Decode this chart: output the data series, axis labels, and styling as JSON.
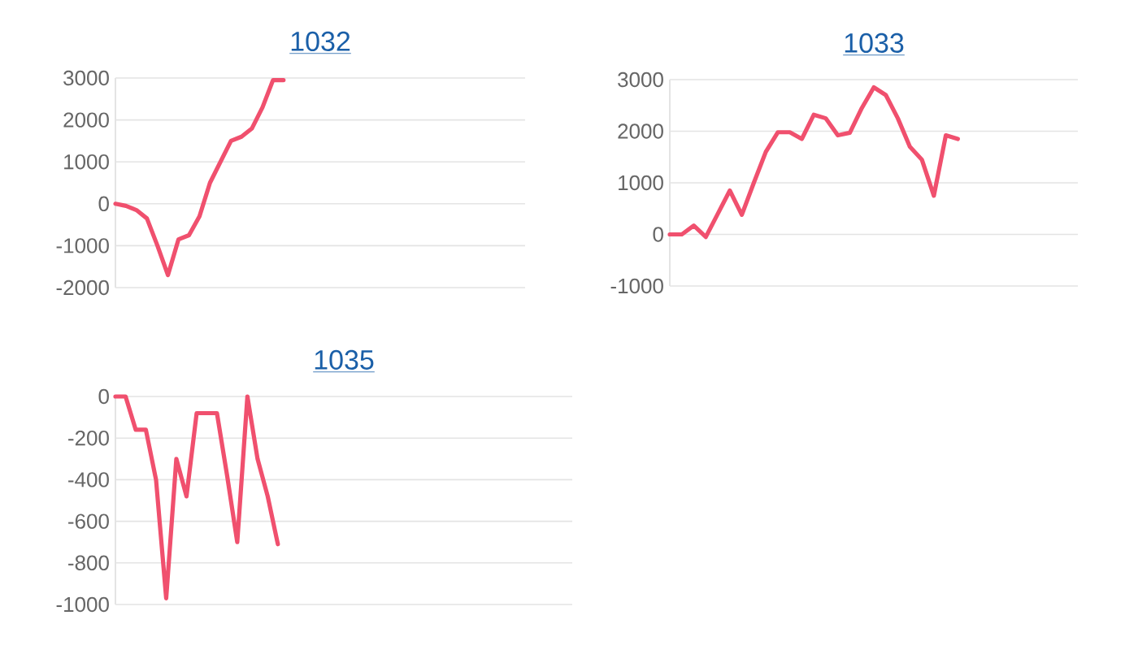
{
  "chart_data": [
    {
      "type": "line",
      "title": "1032",
      "color": "#f0506e",
      "grid": "y",
      "marker": "none",
      "tick_labels": "y",
      "categories": [
        null,
        null,
        null,
        null,
        null,
        null,
        null,
        null,
        null,
        null,
        null,
        null,
        null,
        null,
        null,
        null,
        null,
        null,
        null,
        null,
        null,
        null,
        null,
        null,
        null,
        null,
        null,
        null,
        null,
        null,
        null,
        null,
        null,
        null,
        null,
        null,
        null,
        null,
        null,
        null
      ],
      "values": [
        0,
        -50,
        -150,
        -350,
        -1000,
        -1700,
        -850,
        -750,
        -300,
        500,
        1000,
        1500,
        1600,
        1800,
        2300,
        2950,
        2950,
        null,
        null,
        null,
        null,
        null,
        null,
        null,
        null,
        null,
        null,
        null,
        null,
        null,
        null,
        null,
        null,
        null,
        null,
        null,
        null,
        null,
        null,
        null
      ],
      "ylim": [
        -2000,
        3000
      ],
      "yticks": [
        -2000,
        -1000,
        0,
        1000,
        2000,
        3000
      ]
    },
    {
      "type": "line",
      "title": "1033",
      "color": "#f0506e",
      "grid": "y",
      "marker": "none",
      "tick_labels": "y",
      "categories": [
        null,
        null,
        null,
        null,
        null,
        null,
        null,
        null,
        null,
        null,
        null,
        null,
        null,
        null,
        null,
        null,
        null,
        null,
        null,
        null,
        null,
        null,
        null,
        null,
        null,
        null,
        null,
        null,
        null,
        null,
        null,
        null,
        null,
        null,
        null
      ],
      "values": [
        0,
        0,
        170,
        -50,
        400,
        850,
        380,
        1000,
        1600,
        1980,
        1980,
        1850,
        2320,
        2250,
        1920,
        1970,
        2450,
        2850,
        2700,
        2250,
        1700,
        1450,
        750,
        1920,
        1850,
        null,
        null,
        null,
        null,
        null,
        null,
        null,
        null,
        null,
        null
      ],
      "ylim": [
        -1000,
        3000
      ],
      "yticks": [
        -1000,
        0,
        1000,
        2000,
        3000
      ]
    },
    {
      "type": "line",
      "title": "1035",
      "color": "#f0506e",
      "grid": "y",
      "marker": "none",
      "tick_labels": "y",
      "categories": [
        null,
        null,
        null,
        null,
        null,
        null,
        null,
        null,
        null,
        null,
        null,
        null,
        null,
        null,
        null,
        null,
        null,
        null,
        null,
        null,
        null,
        null,
        null,
        null,
        null,
        null,
        null,
        null,
        null,
        null,
        null,
        null,
        null,
        null,
        null,
        null,
        null,
        null,
        null,
        null,
        null,
        null,
        null,
        null,
        null,
        null
      ],
      "values": [
        0,
        0,
        -160,
        -160,
        -400,
        -970,
        -300,
        -480,
        -80,
        -80,
        -80,
        -380,
        -700,
        0,
        -300,
        -480,
        -710,
        null,
        null,
        null,
        null,
        null,
        null,
        null,
        null,
        null,
        null,
        null,
        null,
        null,
        null,
        null,
        null,
        null,
        null,
        null,
        null,
        null,
        null,
        null,
        null,
        null,
        null,
        null,
        null,
        null
      ],
      "ylim": [
        -1000,
        0
      ],
      "yticks": [
        -1000,
        -800,
        -600,
        -400,
        -200,
        0
      ]
    }
  ]
}
